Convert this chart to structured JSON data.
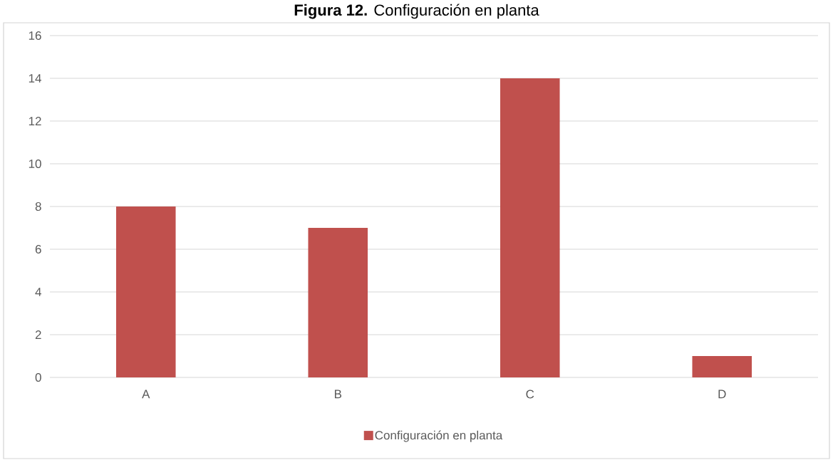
{
  "chart_data": {
    "type": "bar",
    "title": "**Figura 12.** Configuración en planta",
    "categories": [
      "A",
      "B",
      "C",
      "D"
    ],
    "series": [
      {
        "name": "Configuración en planta",
        "color": "#c0504d",
        "values": [
          8,
          7,
          14,
          1
        ]
      }
    ],
    "ylim": [
      0,
      16
    ],
    "yticks": [
      0,
      2,
      4,
      6,
      8,
      10,
      12,
      14,
      16
    ],
    "grid": "y",
    "legend": "bottom"
  }
}
